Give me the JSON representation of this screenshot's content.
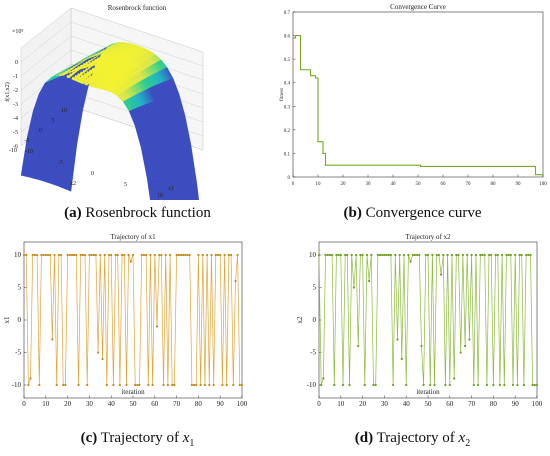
{
  "captions": {
    "a": {
      "tag": "(a)",
      "text": "Rosenbrock function"
    },
    "b": {
      "tag": "(b)",
      "text": "Convergence curve"
    },
    "c": {
      "tag": "(c)",
      "text": "Trajectory of ",
      "var": "x",
      "sub": "1"
    },
    "d": {
      "tag": "(d)",
      "text": "Trajectory of ",
      "var": "x",
      "sub": "2"
    }
  },
  "chart_data": [
    {
      "type": "surface",
      "title": "Rosenbrock function",
      "xlabel": "x1",
      "ylabel": "x2",
      "zlabel": "f(x1,x2)",
      "exponent_label": "×10⁵",
      "xlim": [
        -10,
        10
      ],
      "ylim": [
        -10,
        10
      ],
      "zlim": [
        -6,
        1
      ],
      "x_ticks": [
        "-10",
        "-5",
        "0",
        "5",
        "10"
      ],
      "y_ticks": [
        "10",
        "5",
        "0",
        "-5",
        "-10"
      ],
      "z_ticks": [
        "0",
        "-1",
        "-2",
        "-3",
        "-4",
        "-5",
        "-6"
      ],
      "grid": true,
      "colormap": [
        "#3b4cc0",
        "#21b0c8",
        "#2fd08a",
        "#d9e64a",
        "#f4f22e"
      ]
    },
    {
      "type": "line",
      "title": "Convergence Curve",
      "xlabel": "",
      "ylabel": "fitness",
      "xlim": [
        0,
        100
      ],
      "ylim": [
        0,
        0.7
      ],
      "x_ticks": [
        "0",
        "10",
        "20",
        "30",
        "40",
        "50",
        "60",
        "70",
        "80",
        "90",
        "100"
      ],
      "y_ticks": [
        "0",
        "0.1",
        "0.2",
        "0.3",
        "0.4",
        "0.5",
        "0.6",
        "0.7"
      ],
      "color": "#77aa22",
      "series": [
        {
          "x": [
            0,
            1,
            2,
            3,
            4,
            5,
            6,
            7,
            8,
            9,
            10,
            11,
            12,
            13,
            14,
            15,
            30,
            50,
            51,
            70,
            90,
            96,
            97,
            100
          ],
          "y": [
            0.59,
            0.6,
            0.6,
            0.455,
            0.455,
            0.455,
            0.455,
            0.43,
            0.43,
            0.42,
            0.15,
            0.15,
            0.1,
            0.05,
            0.05,
            0.05,
            0.05,
            0.05,
            0.045,
            0.045,
            0.045,
            0.045,
            0.01,
            0.01
          ]
        }
      ]
    },
    {
      "type": "line",
      "title": "Trajectory of x1",
      "xlabel": "iteration",
      "ylabel": "x1",
      "xlim": [
        0,
        100
      ],
      "ylim": [
        -12,
        12
      ],
      "x_ticks": [
        "0",
        "10",
        "20",
        "30",
        "40",
        "50",
        "60",
        "70",
        "80",
        "90",
        "100"
      ],
      "y_ticks": [
        "10",
        "5",
        "0",
        "-5",
        "-10"
      ],
      "color": "#e0a53a",
      "marker_color": "#c28a1e",
      "series": [
        {
          "values": [
            10,
            10,
            -10,
            -9,
            10,
            10,
            10,
            -10,
            10,
            10,
            10,
            10,
            10,
            -3,
            10,
            -10,
            10,
            10,
            -10,
            -10,
            10,
            10,
            10,
            10,
            10,
            -10,
            10,
            10,
            10,
            -10,
            10,
            10,
            10,
            10,
            -5,
            10,
            -6,
            10,
            -10,
            10,
            10,
            -10,
            10,
            10,
            -10,
            10,
            10,
            -10,
            10,
            9,
            10,
            -10,
            -10,
            -10,
            10,
            10,
            10,
            -10,
            10,
            -10,
            10,
            -1,
            10,
            10,
            -10,
            10,
            -10,
            10,
            -10,
            -10,
            10,
            10,
            10,
            10,
            10,
            10,
            10,
            -10,
            -10,
            -10,
            10,
            -10,
            10,
            -10,
            10,
            -10,
            10,
            -10,
            10,
            10,
            10,
            -10,
            10,
            -10,
            10,
            10,
            -10,
            6,
            10,
            -10,
            -10
          ]
        }
      ]
    },
    {
      "type": "line",
      "title": "Trajectory of x2",
      "xlabel": "iteration",
      "ylabel": "x2",
      "xlim": [
        0,
        100
      ],
      "ylim": [
        -12,
        12
      ],
      "x_ticks": [
        "0",
        "10",
        "20",
        "30",
        "40",
        "50",
        "60",
        "70",
        "80",
        "90",
        "100"
      ],
      "y_ticks": [
        "10",
        "5",
        "0",
        "-5",
        "-10"
      ],
      "color": "#8dbb3e",
      "marker_color": "#6f9c24",
      "series": [
        {
          "values": [
            10,
            -10,
            -9,
            10,
            10,
            10,
            10,
            -10,
            10,
            10,
            10,
            -10,
            10,
            10,
            -10,
            10,
            5,
            10,
            -4,
            10,
            10,
            -10,
            10,
            6,
            10,
            -10,
            -10,
            10,
            10,
            10,
            10,
            10,
            10,
            10,
            -10,
            10,
            -3,
            10,
            -6,
            10,
            -10,
            10,
            9,
            10,
            10,
            10,
            10,
            -4,
            -10,
            10,
            10,
            -10,
            10,
            -10,
            10,
            10,
            7,
            10,
            -10,
            10,
            -10,
            10,
            -9,
            10,
            10,
            -5,
            10,
            -4,
            10,
            -3,
            10,
            -10,
            10,
            -10,
            10,
            10,
            10,
            -10,
            10,
            10,
            -10,
            10,
            10,
            -10,
            10,
            -10,
            10,
            10,
            10,
            -10,
            10,
            -10,
            10,
            10,
            -10,
            10,
            10,
            10,
            -10,
            -10,
            -10
          ]
        }
      ]
    }
  ]
}
